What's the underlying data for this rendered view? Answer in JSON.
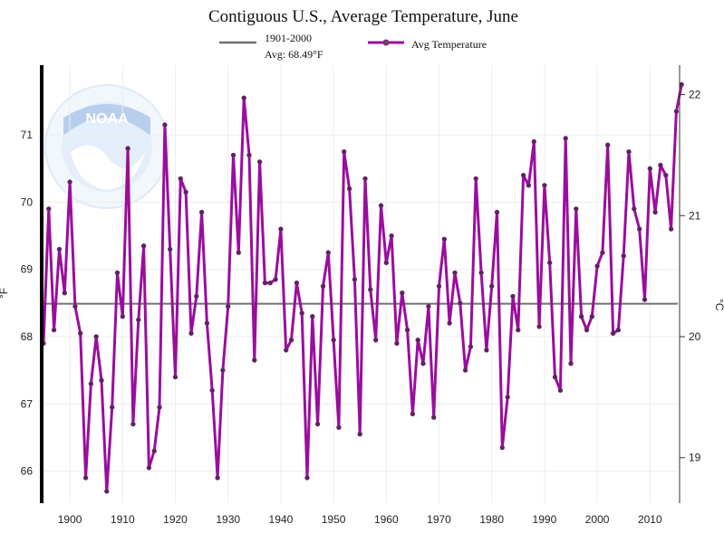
{
  "chart_data": {
    "type": "line",
    "title": "Contiguous U.S., Average Temperature, June",
    "ylabel": "°F",
    "y2label": "°C",
    "ylim": [
      65.5,
      72.2
    ],
    "xlim": [
      1895,
      2015
    ],
    "x_ticks": [
      1900,
      1910,
      1920,
      1930,
      1940,
      1950,
      1960,
      1970,
      1980,
      1990,
      2000,
      2010
    ],
    "y_ticks": [
      66,
      67,
      68,
      69,
      70,
      71
    ],
    "y2_ticks": [
      19,
      20,
      21,
      22
    ],
    "grid": true,
    "legend_position": "top-center",
    "reference_line": {
      "label_line1": "1901-2000",
      "label_line2": "Avg: 68.49°F",
      "value": 68.49,
      "color": "#707070"
    },
    "series": [
      {
        "name": "Avg Temperature",
        "color": "#9a0d9e",
        "x": [
          1895,
          1896,
          1897,
          1898,
          1899,
          1900,
          1901,
          1902,
          1903,
          1904,
          1905,
          1906,
          1907,
          1908,
          1909,
          1910,
          1911,
          1912,
          1913,
          1914,
          1915,
          1916,
          1917,
          1918,
          1919,
          1920,
          1921,
          1922,
          1923,
          1924,
          1925,
          1926,
          1927,
          1928,
          1929,
          1930,
          1931,
          1932,
          1933,
          1934,
          1935,
          1936,
          1937,
          1938,
          1939,
          1940,
          1941,
          1942,
          1943,
          1944,
          1945,
          1946,
          1947,
          1948,
          1949,
          1950,
          1951,
          1952,
          1953,
          1954,
          1955,
          1956,
          1957,
          1958,
          1959,
          1960,
          1961,
          1962,
          1963,
          1964,
          1965,
          1966,
          1967,
          1968,
          1969,
          1970,
          1971,
          1972,
          1973,
          1974,
          1975,
          1976,
          1977,
          1978,
          1979,
          1980,
          1981,
          1982,
          1983,
          1984,
          1985,
          1986,
          1987,
          1988,
          1989,
          1990,
          1991,
          1992,
          1993,
          1994,
          1995,
          1996,
          1997,
          1998,
          1999,
          2000,
          2001,
          2002,
          2003,
          2004,
          2005,
          2006,
          2007,
          2008,
          2009,
          2010,
          2011,
          2012,
          2013,
          2014,
          2015
        ],
        "values": [
          67.9,
          69.9,
          68.1,
          69.3,
          68.65,
          70.3,
          68.45,
          68.05,
          65.9,
          67.3,
          68.0,
          67.35,
          65.7,
          66.95,
          68.95,
          68.3,
          70.8,
          66.7,
          68.25,
          69.35,
          66.05,
          66.3,
          66.95,
          71.15,
          69.3,
          67.4,
          70.35,
          70.15,
          68.05,
          68.6,
          69.85,
          68.2,
          67.2,
          65.9,
          67.5,
          68.45,
          70.7,
          69.25,
          71.55,
          70.7,
          67.65,
          70.6,
          68.8,
          68.8,
          68.85,
          69.6,
          67.8,
          67.95,
          68.8,
          68.35,
          65.9,
          68.3,
          66.7,
          68.75,
          69.25,
          67.95,
          66.65,
          70.75,
          70.2,
          68.85,
          66.55,
          70.35,
          68.7,
          67.95,
          69.95,
          69.1,
          69.5,
          67.9,
          68.65,
          68.1,
          66.85,
          67.95,
          67.6,
          68.45,
          66.8,
          68.75,
          69.45,
          68.2,
          68.95,
          68.5,
          67.5,
          67.85,
          70.35,
          68.95,
          67.8,
          68.75,
          69.85,
          66.35,
          67.1,
          68.6,
          68.1,
          70.4,
          70.25,
          70.9,
          68.15,
          70.25,
          69.1,
          67.4,
          67.2,
          70.95,
          67.6,
          69.9,
          68.3,
          68.1,
          68.3,
          69.05,
          69.25,
          70.85,
          68.05,
          68.1,
          69.2,
          70.75,
          69.9,
          69.6,
          68.55,
          70.5,
          69.85,
          70.55,
          70.4,
          69.6,
          71.35
        ],
        "extra_end_point": {
          "x": 2016,
          "value": 71.75
        }
      }
    ]
  }
}
